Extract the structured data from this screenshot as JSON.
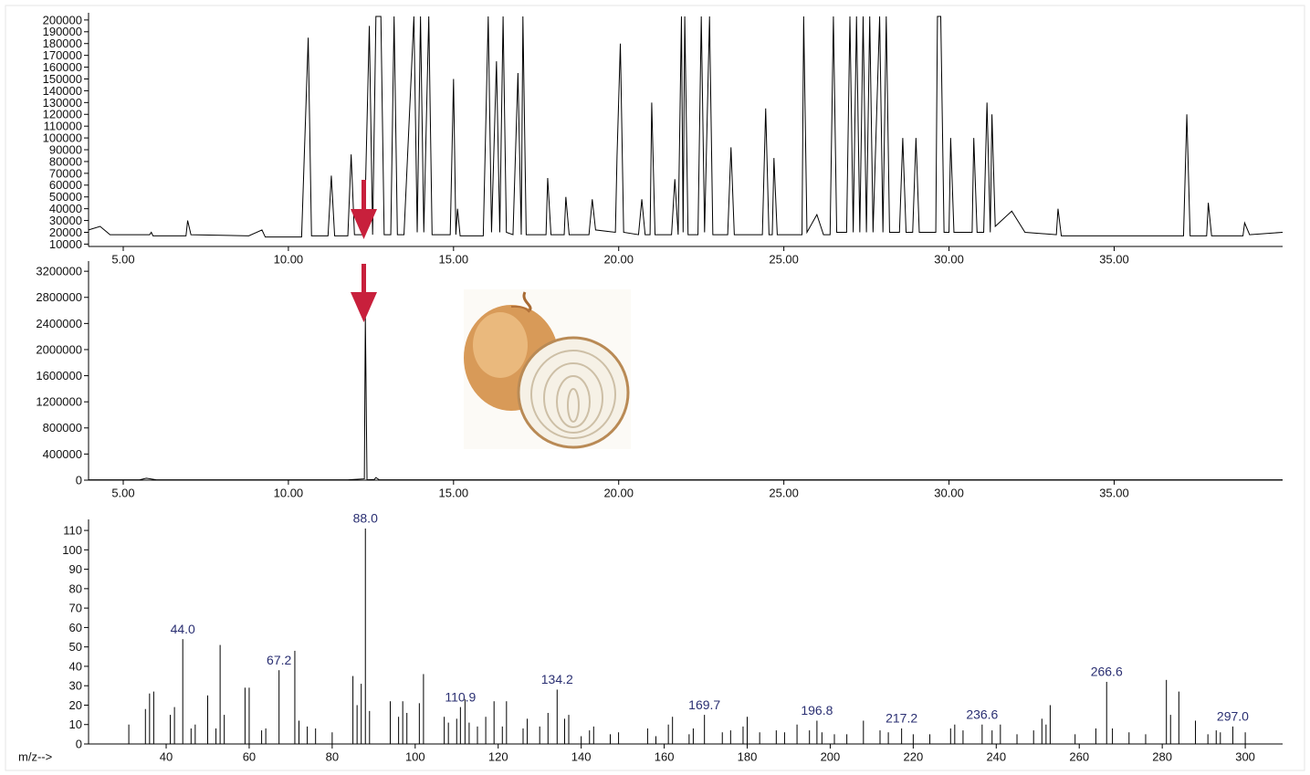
{
  "chart_data": [
    {
      "type": "line",
      "x": [
        3.95,
        4.3,
        4.6,
        5.8,
        5.85,
        5.9,
        6.9,
        6.95,
        7.05,
        8.8,
        9.2,
        9.3,
        10.4,
        10.6,
        10.7,
        11.2,
        11.3,
        11.4,
        11.8,
        11.9,
        12.0,
        12.3,
        12.45,
        12.55,
        12.65,
        12.8,
        12.9,
        13.1,
        13.2,
        13.3,
        13.5,
        13.8,
        13.9,
        14.0,
        14.1,
        14.25,
        14.35,
        14.9,
        15.0,
        15.07,
        15.12,
        15.2,
        15.9,
        16.05,
        16.15,
        16.3,
        16.4,
        16.5,
        16.6,
        16.8,
        16.95,
        17.05,
        17.1,
        17.2,
        17.8,
        17.85,
        17.95,
        18.35,
        18.4,
        18.5,
        19.1,
        19.2,
        19.3,
        19.9,
        19.95,
        20.05,
        20.15,
        20.6,
        20.7,
        20.8,
        20.95,
        21.0,
        21.1,
        21.6,
        21.7,
        21.8,
        21.9,
        21.95,
        22.0,
        22.1,
        22.4,
        22.5,
        22.6,
        22.75,
        22.85,
        23.3,
        23.4,
        23.5,
        24.35,
        24.45,
        24.55,
        24.65,
        24.7,
        24.8,
        25.55,
        25.6,
        25.7,
        26.0,
        26.2,
        26.4,
        26.5,
        26.6,
        26.9,
        27.0,
        27.1,
        27.2,
        27.3,
        27.4,
        27.5,
        27.6,
        27.7,
        27.9,
        28.0,
        28.1,
        28.2,
        28.5,
        28.6,
        28.7,
        28.9,
        29.0,
        29.1,
        29.6,
        29.65,
        29.75,
        29.85,
        30.0,
        30.05,
        30.15,
        30.7,
        30.75,
        30.85,
        31.05,
        31.15,
        31.25,
        31.3,
        31.4,
        31.9,
        32.3,
        33.25,
        33.3,
        33.4,
        37.1,
        37.2,
        37.3,
        37.8,
        37.85,
        37.95,
        38.9,
        38.95,
        39.1,
        40.1
      ],
      "values": [
        22000,
        25000,
        18000,
        18000,
        20000,
        17000,
        17000,
        30000,
        18000,
        17000,
        22000,
        16000,
        16000,
        185000,
        17000,
        17000,
        68000,
        17000,
        17000,
        86000,
        18000,
        18000,
        195000,
        18000,
        203000,
        203000,
        18000,
        18000,
        203000,
        18000,
        18000,
        203000,
        20000,
        203000,
        20000,
        203000,
        18000,
        18000,
        150000,
        18000,
        40000,
        17000,
        17000,
        203000,
        20000,
        165000,
        20000,
        203000,
        20000,
        18000,
        155000,
        18000,
        203000,
        18000,
        18000,
        66000,
        18000,
        18000,
        50000,
        18000,
        18000,
        48000,
        22000,
        20000,
        85000,
        180000,
        20000,
        18000,
        48000,
        18000,
        18000,
        130000,
        18000,
        18000,
        65000,
        18000,
        203000,
        20000,
        203000,
        18000,
        18000,
        203000,
        20000,
        203000,
        18000,
        18000,
        92000,
        18000,
        18000,
        125000,
        18000,
        18000,
        83000,
        18000,
        18000,
        203000,
        20000,
        35000,
        18000,
        18000,
        203000,
        20000,
        20000,
        203000,
        20000,
        203000,
        20000,
        203000,
        20000,
        203000,
        20000,
        203000,
        20000,
        203000,
        20000,
        20000,
        100000,
        20000,
        20000,
        100000,
        20000,
        20000,
        203000,
        203000,
        20000,
        20000,
        100000,
        20000,
        20000,
        100000,
        20000,
        20000,
        130000,
        20000,
        120000,
        25000,
        38000,
        20000,
        18000,
        40000,
        17000,
        17000,
        120000,
        17000,
        17000,
        45000,
        17000,
        17000,
        28000,
        18000,
        20000
      ],
      "color": "#000000",
      "xlim": [
        3.95,
        40.1
      ],
      "ylim": [
        8000,
        203000
      ],
      "xticks": [
        {
          "value": 5,
          "label": "5.00"
        },
        {
          "value": 10,
          "label": "10.00"
        },
        {
          "value": 15,
          "label": "15.00"
        },
        {
          "value": 20,
          "label": "20.00"
        },
        {
          "value": 25,
          "label": "25.00"
        },
        {
          "value": 30,
          "label": "30.00"
        },
        {
          "value": 35,
          "label": "35.00"
        }
      ],
      "yticks": [
        10000,
        20000,
        30000,
        40000,
        50000,
        60000,
        70000,
        80000,
        90000,
        100000,
        110000,
        120000,
        130000,
        140000,
        150000,
        160000,
        170000,
        180000,
        190000,
        200000
      ]
    },
    {
      "type": "line",
      "x": [
        3.95,
        5.5,
        5.7,
        6.0,
        11.8,
        12.3,
        12.33,
        12.38,
        12.6,
        12.65,
        12.75,
        40.1
      ],
      "values": [
        5000,
        5000,
        30000,
        5000,
        5000,
        20000,
        2500000,
        5000,
        10000,
        40000,
        5000,
        5000
      ],
      "color": "#000000",
      "xlim": [
        3.95,
        40.1
      ],
      "ylim": [
        0,
        3300000
      ],
      "xticks": [
        {
          "value": 5,
          "label": "5.00"
        },
        {
          "value": 10,
          "label": "10.00"
        },
        {
          "value": 15,
          "label": "15.00"
        },
        {
          "value": 20,
          "label": "20.00"
        },
        {
          "value": 25,
          "label": "25.00"
        },
        {
          "value": 30,
          "label": "30.00"
        },
        {
          "value": 35,
          "label": "35.00"
        }
      ],
      "yticks": [
        0,
        400000,
        800000,
        1200000,
        1600000,
        2000000,
        2400000,
        2800000,
        3200000
      ]
    },
    {
      "type": "bar",
      "xlabel": "m/z-->",
      "x": [
        31,
        35,
        36,
        37,
        41,
        42,
        44.0,
        46,
        47,
        50,
        52,
        53,
        54,
        59,
        60,
        63,
        64,
        67.2,
        71,
        72,
        74,
        76,
        80,
        85,
        86,
        87,
        88.0,
        89,
        94,
        96,
        97,
        98,
        101,
        102,
        107,
        108,
        110,
        110.9,
        112,
        113,
        115,
        117,
        119,
        121,
        122,
        126,
        127,
        130,
        132,
        134.2,
        136,
        137,
        140,
        142,
        143,
        147,
        149,
        156,
        158,
        161,
        162,
        166,
        167,
        169.7,
        174,
        176,
        179,
        180,
        183,
        187,
        189,
        192,
        195,
        196.8,
        198,
        201,
        204,
        208,
        212,
        214,
        217.2,
        220,
        224,
        229,
        230,
        232,
        236.6,
        239,
        241,
        245,
        249,
        251,
        252,
        253,
        259,
        264,
        266.6,
        268,
        272,
        276,
        281,
        282,
        284,
        288,
        291,
        293,
        294,
        297.0,
        300
      ],
      "values": [
        10,
        18,
        26,
        27,
        15,
        19,
        54,
        8,
        10,
        25,
        8,
        51,
        15,
        29,
        29,
        7,
        8,
        38,
        48,
        12,
        9,
        8,
        6,
        35,
        20,
        31,
        111,
        17,
        22,
        14,
        22,
        16,
        21,
        36,
        14,
        11,
        13,
        19,
        23,
        11,
        9,
        14,
        22,
        9,
        22,
        8,
        13,
        9,
        16,
        28,
        13,
        15,
        4,
        7,
        9,
        5,
        6,
        8,
        4,
        10,
        14,
        5,
        8,
        15,
        6,
        7,
        9,
        14,
        6,
        7,
        6,
        10,
        7,
        12,
        6,
        5,
        5,
        12,
        7,
        6,
        8,
        5,
        5,
        8,
        10,
        7,
        10,
        7,
        10,
        5,
        7,
        13,
        10,
        20,
        5,
        8,
        32,
        8,
        6,
        5,
        33,
        15,
        27,
        12,
        5,
        7,
        6,
        9,
        6
      ],
      "x_labels": [
        null,
        null,
        null,
        null,
        null,
        null,
        "44.0",
        null,
        null,
        null,
        null,
        null,
        null,
        null,
        null,
        null,
        null,
        "67.2",
        null,
        null,
        null,
        null,
        null,
        null,
        null,
        null,
        "88.0",
        null,
        null,
        null,
        null,
        null,
        null,
        null,
        null,
        null,
        null,
        "110.9",
        null,
        null,
        null,
        null,
        null,
        null,
        null,
        null,
        null,
        null,
        null,
        "134.2",
        null,
        null,
        null,
        null,
        null,
        null,
        null,
        null,
        null,
        null,
        null,
        null,
        null,
        "169.7",
        null,
        null,
        null,
        null,
        null,
        null,
        null,
        null,
        null,
        "196.8",
        null,
        null,
        null,
        null,
        null,
        null,
        "217.2",
        null,
        null,
        null,
        null,
        null,
        "236.6",
        null,
        null,
        null,
        null,
        null,
        null,
        null,
        null,
        null,
        "266.6",
        null,
        null,
        null,
        null,
        null,
        null,
        null,
        null,
        null,
        null,
        "297.0",
        null
      ],
      "color": "#000000",
      "xlim": [
        21.3,
        309
      ],
      "ylim": [
        0,
        113.8
      ],
      "xticks": [
        40,
        60,
        80,
        100,
        120,
        140,
        160,
        180,
        200,
        220,
        240,
        260,
        280,
        300
      ],
      "yticks": [
        0,
        10,
        20,
        30,
        40,
        50,
        60,
        70,
        80,
        90,
        100,
        110
      ]
    }
  ]
}
